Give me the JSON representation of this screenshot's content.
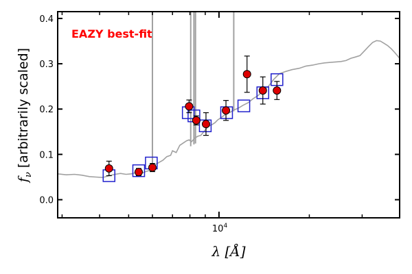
{
  "chart_data": {
    "type": "scatter",
    "title": "",
    "annotation": "EAZY best-fit",
    "annotation_color": "#ff0000",
    "xlabel": "λ [Å]",
    "ylabel_symbol": "f",
    "ylabel_sub": "ν",
    "ylabel_text": "[arbitrarily scaled]",
    "xscale": "log",
    "xlim": [
      2900,
      40000
    ],
    "ylim": [
      -0.04,
      0.415
    ],
    "x_ticks": [
      {
        "value": 10000,
        "label": "10",
        "exp": "4"
      }
    ],
    "y_ticks": [
      {
        "value": 0.0,
        "label": "0.0"
      },
      {
        "value": 0.1,
        "label": "0.1"
      },
      {
        "value": 0.2,
        "label": "0.2"
      },
      {
        "value": 0.3,
        "label": "0.3"
      },
      {
        "value": 0.4,
        "label": "0.4"
      }
    ],
    "grid": false,
    "series": [
      {
        "style": "points-with-errorbars",
        "color": "#dd0000",
        "points": [
          {
            "x": 4300,
            "y": 0.069,
            "err": 0.016
          },
          {
            "x": 5400,
            "y": 0.061,
            "err": 0.008
          },
          {
            "x": 6000,
            "y": 0.071,
            "err": 0.009
          },
          {
            "x": 7950,
            "y": 0.206,
            "err": 0.014
          },
          {
            "x": 8400,
            "y": 0.175,
            "err": 0.01
          },
          {
            "x": 9050,
            "y": 0.167,
            "err": 0.025
          },
          {
            "x": 10550,
            "y": 0.197,
            "err": 0.022
          },
          {
            "x": 12400,
            "y": 0.277,
            "err": 0.04
          },
          {
            "x": 14000,
            "y": 0.241,
            "err": 0.03
          },
          {
            "x": 15600,
            "y": 0.241,
            "err": 0.02
          }
        ]
      },
      {
        "style": "open-squares",
        "color": "#2020cc",
        "points": [
          {
            "x": 4300,
            "y": 0.053
          },
          {
            "x": 5400,
            "y": 0.064
          },
          {
            "x": 5950,
            "y": 0.081
          },
          {
            "x": 7900,
            "y": 0.192
          },
          {
            "x": 8250,
            "y": 0.185
          },
          {
            "x": 9000,
            "y": 0.163
          },
          {
            "x": 10600,
            "y": 0.192
          },
          {
            "x": 12100,
            "y": 0.207
          },
          {
            "x": 14000,
            "y": 0.236
          },
          {
            "x": 15600,
            "y": 0.265
          }
        ]
      },
      {
        "style": "line",
        "color": "#a0a0a0",
        "points": [
          [
            2900,
            0.057
          ],
          [
            3100,
            0.055
          ],
          [
            3300,
            0.056
          ],
          [
            3500,
            0.054
          ],
          [
            3700,
            0.051
          ],
          [
            3900,
            0.05
          ],
          [
            4100,
            0.049
          ],
          [
            4300,
            0.053
          ],
          [
            4500,
            0.056
          ],
          [
            4700,
            0.058
          ],
          [
            4900,
            0.056
          ],
          [
            5100,
            0.057
          ],
          [
            5300,
            0.06
          ],
          [
            5500,
            0.058
          ],
          [
            5700,
            0.062
          ],
          [
            5900,
            0.065
          ],
          [
            6050,
            0.068
          ],
          [
            6150,
            0.078
          ],
          [
            6300,
            0.082
          ],
          [
            6500,
            0.087
          ],
          [
            6700,
            0.095
          ],
          [
            6900,
            0.098
          ],
          [
            7000,
            0.108
          ],
          [
            7200,
            0.104
          ],
          [
            7400,
            0.12
          ],
          [
            7600,
            0.125
          ],
          [
            7800,
            0.13
          ],
          [
            7950,
            0.132
          ],
          [
            8100,
            0.128
          ],
          [
            8300,
            0.136
          ],
          [
            8500,
            0.14
          ],
          [
            8700,
            0.142
          ],
          [
            8900,
            0.15
          ],
          [
            9100,
            0.158
          ],
          [
            9300,
            0.163
          ],
          [
            9500,
            0.166
          ],
          [
            9700,
            0.17
          ],
          [
            9900,
            0.176
          ],
          [
            10100,
            0.18
          ],
          [
            10300,
            0.184
          ],
          [
            10600,
            0.19
          ],
          [
            10900,
            0.193
          ],
          [
            11200,
            0.198
          ],
          [
            11600,
            0.202
          ],
          [
            12000,
            0.208
          ],
          [
            12500,
            0.214
          ],
          [
            13000,
            0.223
          ],
          [
            13500,
            0.23
          ],
          [
            14000,
            0.24
          ],
          [
            14600,
            0.25
          ],
          [
            15200,
            0.265
          ],
          [
            15900,
            0.278
          ],
          [
            16700,
            0.283
          ],
          [
            17500,
            0.287
          ],
          [
            18500,
            0.29
          ],
          [
            19500,
            0.295
          ],
          [
            20500,
            0.297
          ],
          [
            21500,
            0.3
          ],
          [
            22500,
            0.302
          ],
          [
            23500,
            0.303
          ],
          [
            24500,
            0.304
          ],
          [
            25500,
            0.305
          ],
          [
            26500,
            0.307
          ],
          [
            27500,
            0.312
          ],
          [
            28500,
            0.315
          ],
          [
            29500,
            0.318
          ],
          [
            30500,
            0.328
          ],
          [
            31500,
            0.338
          ],
          [
            32500,
            0.347
          ],
          [
            33500,
            0.351
          ],
          [
            34500,
            0.35
          ],
          [
            35500,
            0.345
          ],
          [
            36500,
            0.34
          ],
          [
            37500,
            0.333
          ],
          [
            38500,
            0.325
          ],
          [
            40000,
            0.312
          ]
        ]
      },
      {
        "style": "emission-lines",
        "color": "#a0a0a0",
        "lines": [
          {
            "x": 6000,
            "y0": 0.065,
            "y1": 0.415
          },
          {
            "x": 8050,
            "y0": 0.118,
            "y1": 0.415
          },
          {
            "x": 8250,
            "y0": 0.122,
            "y1": 0.415
          },
          {
            "x": 8350,
            "y0": 0.124,
            "y1": 0.415
          },
          {
            "x": 11200,
            "y0": 0.195,
            "y1": 0.415
          }
        ]
      }
    ]
  }
}
